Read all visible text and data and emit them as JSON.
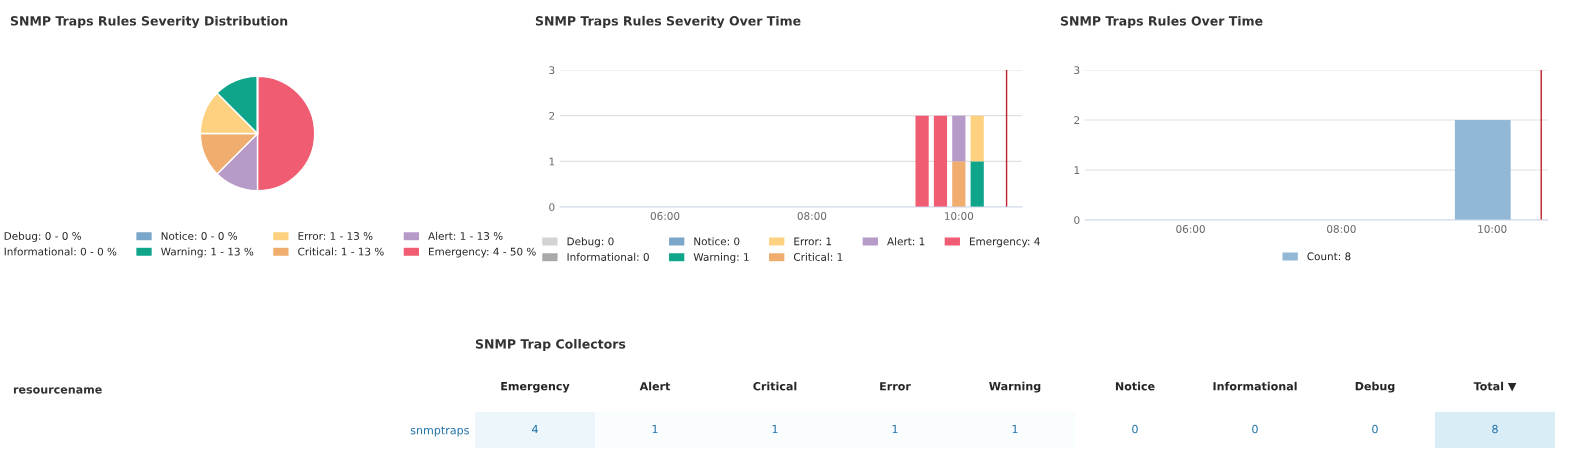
{
  "chart_data": [
    {
      "type": "pie",
      "title": "SNMP Traps Rules Severity Distribution",
      "categories": [
        "Debug: 0 - 0 %",
        "Informational: 0 - 0 %",
        "Notice: 0 - 0 %",
        "Warning: 1 - 13 %",
        "Error: 1 - 13 %",
        "Critical: 1 - 13 %",
        "Alert: 1 - 13 %",
        "Emergency: 4 - 50 %"
      ],
      "values": [
        0,
        0,
        0,
        1,
        1,
        1,
        1,
        4
      ],
      "colors": [
        "#d3d3d3",
        "#a9a9a9",
        "#7aa6c9",
        "#0ea58a",
        "#fdd17f",
        "#f0ad6e",
        "#b69ac8",
        "#f05d73"
      ],
      "legend": "bottom"
    },
    {
      "type": "bar",
      "stacked": true,
      "title": "SNMP Traps Rules Severity Over Time",
      "x": [
        9.5,
        9.75,
        10,
        10.25
      ],
      "series": [
        {
          "name": "Debug: 0",
          "color": "#d3d3d3",
          "values": [
            0,
            0,
            0,
            0
          ]
        },
        {
          "name": "Informational: 0",
          "color": "#a9a9a9",
          "values": [
            0,
            0,
            0,
            0
          ]
        },
        {
          "name": "Notice: 0",
          "color": "#7aa6c9",
          "values": [
            0,
            0,
            0,
            0
          ]
        },
        {
          "name": "Warning: 1",
          "color": "#0ea58a",
          "values": [
            0,
            0,
            0,
            1
          ]
        },
        {
          "name": "Error: 1",
          "color": "#fdd17f",
          "values": [
            0,
            0,
            0,
            1
          ]
        },
        {
          "name": "Critical: 1",
          "color": "#f0ad6e",
          "values": [
            0,
            0,
            1,
            0
          ]
        },
        {
          "name": "Alert: 1",
          "color": "#b69ac8",
          "values": [
            0,
            0,
            1,
            0
          ]
        },
        {
          "name": "Emergency: 4",
          "color": "#f05d73",
          "values": [
            2,
            2,
            0,
            0
          ]
        }
      ],
      "xlim": [
        4.57,
        10.86
      ],
      "xticks": [
        {
          "value": 6,
          "label": "06:00"
        },
        {
          "value": 8,
          "label": "08:00"
        },
        {
          "value": 10,
          "label": "10:00"
        }
      ],
      "ylim": [
        0,
        3
      ],
      "yticks": [
        0,
        1,
        2,
        3
      ],
      "grid": "y",
      "legend": "bottom",
      "ref_lines": [
        {
          "axis": "x",
          "value": 10.65,
          "color": "#c0202a"
        }
      ]
    },
    {
      "type": "bar",
      "title": "SNMP Traps Rules Over Time",
      "x": [
        9.875
      ],
      "series": [
        {
          "name": "Count: 8",
          "color": "#92b8d8",
          "values": [
            2
          ]
        }
      ],
      "xlim": [
        4.6,
        10.74
      ],
      "xticks": [
        {
          "value": 6,
          "label": "06:00"
        },
        {
          "value": 8,
          "label": "08:00"
        },
        {
          "value": 10,
          "label": "10:00"
        }
      ],
      "ylim": [
        0,
        3
      ],
      "yticks": [
        0,
        1,
        2,
        3
      ],
      "grid": "y",
      "legend": "bottom",
      "ref_lines": [
        {
          "axis": "x",
          "value": 10.65,
          "color": "#c0202a"
        }
      ]
    },
    {
      "type": "heatmap",
      "title": "SNMP Trap Collectors",
      "ylabel": "resourcename",
      "categories": [
        "Emergency",
        "Alert",
        "Critical",
        "Error",
        "Warning",
        "Notice",
        "Informational",
        "Debug",
        "Total ▼"
      ],
      "y_categories": [
        "snmptraps"
      ],
      "cells": [
        [
          4,
          1,
          1,
          1,
          1,
          0,
          0,
          0,
          8
        ]
      ],
      "cell_labels": [
        [
          "4",
          "1",
          "1",
          "1",
          "1",
          "0",
          "0",
          "0",
          "8"
        ]
      ]
    }
  ]
}
